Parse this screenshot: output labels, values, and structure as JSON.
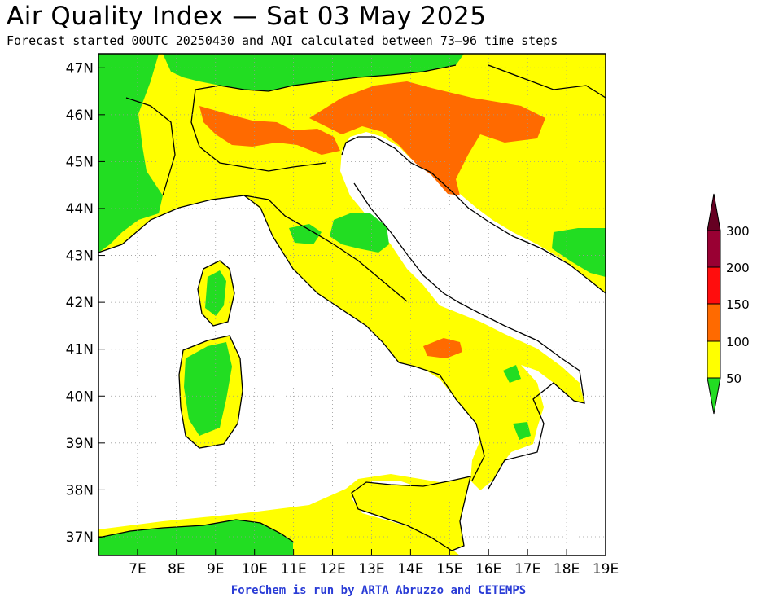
{
  "header": {
    "title": "Air Quality Index — Sat 03 May 2025",
    "subtitle": "Forecast started 00UTC 20250430 and AQI calculated between 73–96 time steps"
  },
  "map": {
    "lon_range": [
      6,
      19
    ],
    "lat_range": [
      36.6,
      47.3
    ],
    "lon_ticks": [
      "7E",
      "8E",
      "9E",
      "10E",
      "11E",
      "12E",
      "13E",
      "14E",
      "15E",
      "16E",
      "17E",
      "18E",
      "19E"
    ],
    "lat_ticks": [
      "47N",
      "46N",
      "45N",
      "44N",
      "43N",
      "42N",
      "41N",
      "40N",
      "39N",
      "38N",
      "37N"
    ]
  },
  "legend": {
    "colors": {
      "good": "#22dd22",
      "moderate": "#ffff00",
      "unhealthy_sensitive": "#ff6a00",
      "unhealthy": "#ff0d0d",
      "very_unhealthy": "#990033",
      "hazardous": "#660022"
    },
    "labels": [
      "50",
      "100",
      "150",
      "200",
      "300"
    ]
  },
  "footer": {
    "credit": "ForeChem is run by ARTA Abruzzo and CETEMPS"
  }
}
